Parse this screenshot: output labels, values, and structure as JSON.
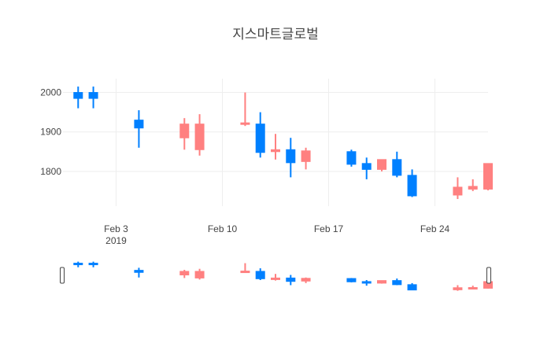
{
  "chart_data": {
    "type": "candlestick",
    "title": "지스마트글로벌",
    "xlabel": "",
    "ylabel": "",
    "ylim": [
      1712,
      2035
    ],
    "y_ticks": [
      2000,
      1900,
      1800
    ],
    "x_ticks": [
      {
        "date": "2019-02-03",
        "label": "Feb 3",
        "sublabel": "2019"
      },
      {
        "date": "2019-02-10",
        "label": "Feb 10",
        "sublabel": ""
      },
      {
        "date": "2019-02-17",
        "label": "Feb 17",
        "sublabel": ""
      },
      {
        "date": "2019-02-24",
        "label": "Feb 24",
        "sublabel": ""
      }
    ],
    "xlim": [
      "2019-01-30T12:00",
      "2019-02-27T12:00"
    ],
    "grid": true,
    "range_slider": true,
    "colors": {
      "increasing": "#FF8080",
      "decreasing": "#0080FF",
      "grid": "#EEEEEE",
      "slider_handle": "#444444"
    },
    "candles": [
      {
        "date": "2019-01-31",
        "open": 2000,
        "high": 2015,
        "low": 1960,
        "close": 1985
      },
      {
        "date": "2019-02-01",
        "open": 2000,
        "high": 2015,
        "low": 1960,
        "close": 1985
      },
      {
        "date": "2019-02-07",
        "open": 1885,
        "high": 1935,
        "low": 1855,
        "close": 1920
      },
      {
        "date": "2019-02-11",
        "open": 1920,
        "high": 2000,
        "low": 1915,
        "close": 1923
      },
      {
        "date": "2019-02-13",
        "open": 1850,
        "high": 1895,
        "low": 1830,
        "close": 1855
      },
      {
        "date": "2019-02-15",
        "open": 1825,
        "high": 1860,
        "low": 1805,
        "close": 1852
      },
      {
        "date": "2019-02-19",
        "open": 1820,
        "high": 1835,
        "low": 1780,
        "close": 1805
      },
      {
        "date": "2019-02-20",
        "open": 1805,
        "high": 1830,
        "low": 1800,
        "close": 1830
      },
      {
        "date": "2019-02-21",
        "open": 1830,
        "high": 1850,
        "low": 1785,
        "close": 1790
      },
      {
        "date": "2019-02-22",
        "open": 1790,
        "high": 1805,
        "low": 1735,
        "close": 1738
      },
      {
        "date": "2019-02-25",
        "open": 1740,
        "high": 1785,
        "low": 1730,
        "close": 1760
      },
      {
        "date": "2019-02-26",
        "open": 1755,
        "high": 1780,
        "low": 1750,
        "close": 1762
      },
      {
        "date": "2019-02-27",
        "open": 1755,
        "high": 1820,
        "low": 1752,
        "close": 1820
      }
    ],
    "candles_extra": [
      {
        "date": "2019-02-04",
        "open": 1930,
        "high": 1955,
        "low": 1860,
        "close": 1910
      },
      {
        "date": "2019-02-08",
        "open": 1855,
        "high": 1945,
        "low": 1840,
        "close": 1920
      },
      {
        "date": "2019-02-12",
        "open": 1920,
        "high": 1950,
        "low": 1835,
        "close": 1848
      },
      {
        "date": "2019-02-14",
        "open": 1855,
        "high": 1885,
        "low": 1785,
        "close": 1822
      },
      {
        "date": "2019-02-18",
        "open": 1850,
        "high": 1855,
        "low": 1812,
        "close": 1818
      }
    ]
  }
}
